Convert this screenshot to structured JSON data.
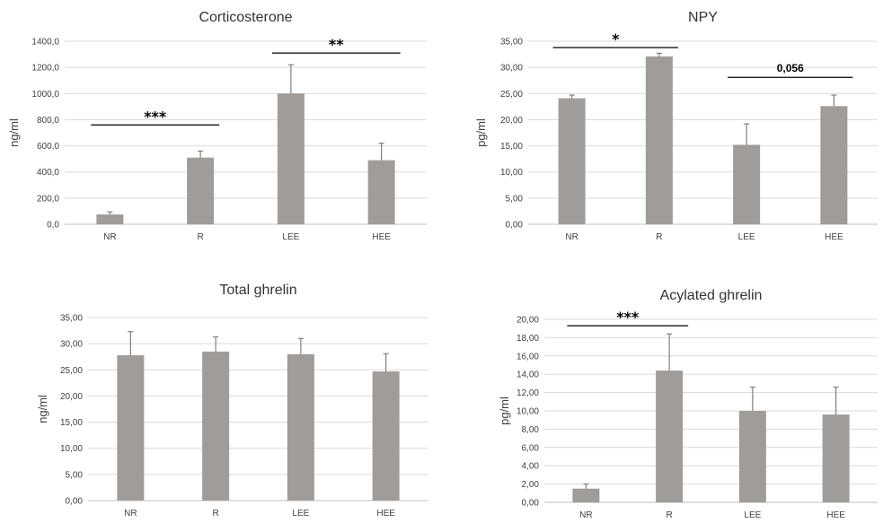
{
  "chart_data": [
    {
      "type": "bar",
      "title": "Corticosterone",
      "ylabel": "ng/ml",
      "xlabel": "",
      "categories": [
        "NR",
        "R",
        "LEE",
        "HEE"
      ],
      "values": [
        75,
        510,
        1000,
        490
      ],
      "errors": [
        20,
        50,
        220,
        130
      ],
      "ylim": [
        0,
        1400
      ],
      "yticks": [
        0,
        200,
        400,
        600,
        800,
        1000,
        1200,
        1400
      ],
      "ytick_labels": [
        "0,0",
        "200,0",
        "400,0",
        "600,0",
        "800,0",
        "1000,0",
        "1200,0",
        "1400,0"
      ],
      "grid": true,
      "color": "#a09c9a",
      "annotations": [
        {
          "label": "***",
          "from": "NR",
          "to": "R",
          "y": 760
        },
        {
          "label": "**",
          "from": "LEE",
          "to": "HEE",
          "y": 1310
        }
      ]
    },
    {
      "type": "bar",
      "title": "NPY",
      "ylabel": "pg/ml",
      "xlabel": "",
      "categories": [
        "NR",
        "R",
        "LEE",
        "HEE"
      ],
      "values": [
        24.1,
        32.1,
        15.2,
        22.6
      ],
      "errors": [
        0.6,
        0.6,
        4.0,
        2.1
      ],
      "ylim": [
        0,
        35
      ],
      "yticks": [
        0,
        5,
        10,
        15,
        20,
        25,
        30,
        35
      ],
      "ytick_labels": [
        "0,00",
        "5,00",
        "10,00",
        "15,00",
        "20,00",
        "25,00",
        "30,00",
        "35,00"
      ],
      "grid": true,
      "color": "#a09c9a",
      "annotations": [
        {
          "label": "*",
          "from": "NR",
          "to": "R",
          "y": 33.8
        },
        {
          "label": "0,056",
          "from": "LEE",
          "to": "HEE",
          "y": 28.1
        }
      ]
    },
    {
      "type": "bar",
      "title": "Total ghrelin",
      "ylabel": "ng/ml",
      "xlabel": "",
      "categories": [
        "NR",
        "R",
        "LEE",
        "HEE"
      ],
      "values": [
        27.8,
        28.5,
        28.0,
        24.7
      ],
      "errors": [
        4.5,
        2.8,
        3.0,
        3.4
      ],
      "ylim": [
        0,
        35
      ],
      "yticks": [
        0,
        5,
        10,
        15,
        20,
        25,
        30,
        35
      ],
      "ytick_labels": [
        "0,00",
        "5,00",
        "10,00",
        "15,00",
        "20,00",
        "25,00",
        "30,00",
        "35,00"
      ],
      "grid": true,
      "color": "#a09c9a",
      "annotations": []
    },
    {
      "type": "bar",
      "title": "Acylated ghrelin",
      "ylabel": "pg/ml",
      "xlabel": "",
      "categories": [
        "NR",
        "R",
        "LEE",
        "HEE"
      ],
      "values": [
        1.5,
        14.4,
        10.0,
        9.6
      ],
      "errors": [
        0.5,
        4.0,
        2.6,
        3.0
      ],
      "ylim": [
        0,
        20
      ],
      "yticks": [
        0,
        2,
        4,
        6,
        8,
        10,
        12,
        14,
        16,
        18,
        20
      ],
      "ytick_labels": [
        "0,00",
        "2,00",
        "4,00",
        "6,00",
        "8,00",
        "10,00",
        "12,00",
        "14,00",
        "16,00",
        "18,00",
        "20,00"
      ],
      "grid": true,
      "color": "#a09c9a",
      "annotations": [
        {
          "label": "***",
          "from": "NR",
          "to": "R",
          "y": 19.3
        }
      ]
    }
  ]
}
